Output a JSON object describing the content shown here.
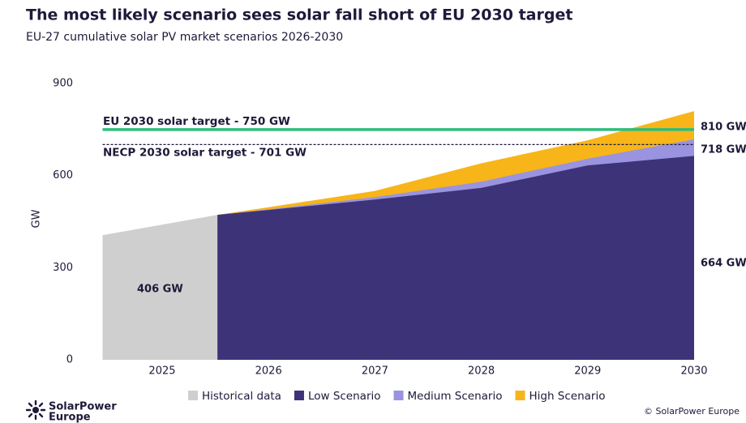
{
  "chart_data": {
    "type": "area",
    "title": "The most likely scenario sees solar fall short of EU 2030 target",
    "subtitle": "EU-27 cumulative solar PV market scenarios 2026-2030",
    "y_label": "GW",
    "xlim": [
      2024.44,
      2030
    ],
    "xticks": [
      2025,
      2026,
      2027,
      2028,
      2029,
      2030
    ],
    "ylim": [
      0,
      900
    ],
    "yticks": [
      0,
      300,
      600,
      900
    ],
    "grid": false,
    "series": [
      {
        "name": "Historical data",
        "color": "#cfcfcf",
        "x": [
          2024.44,
          2025.52
        ],
        "values": [
          406,
          472
        ],
        "value_labels": [
          "406 GW",
          null
        ]
      },
      {
        "name": "Low Scenario",
        "color": "#3d3378",
        "x": [
          2025.52,
          2026,
          2027,
          2028,
          2029,
          2030
        ],
        "values": [
          472,
          488,
          522,
          560,
          633,
          664
        ],
        "value_labels": [
          null,
          null,
          null,
          null,
          null,
          "664 GW"
        ]
      },
      {
        "name": "Medium Scenario",
        "color": "#9a93e0",
        "x": [
          2025.52,
          2026,
          2027,
          2028,
          2029,
          2030
        ],
        "values": [
          472,
          490,
          530,
          580,
          655,
          718
        ],
        "value_labels": [
          null,
          null,
          null,
          null,
          null,
          "718 GW"
        ]
      },
      {
        "name": "High Scenario",
        "color": "#f7b519",
        "x": [
          2025.52,
          2026,
          2027,
          2028,
          2029,
          2030
        ],
        "values": [
          472,
          497,
          550,
          640,
          715,
          810
        ],
        "value_labels": [
          null,
          null,
          null,
          null,
          null,
          "810 GW"
        ]
      }
    ],
    "annotations": [
      {
        "label": "EU 2030 solar target - 750 GW",
        "value": 750,
        "color": "#2ebd7a",
        "style": "solid"
      },
      {
        "label": "NECP 2030 solar target - 701 GW",
        "value": 701,
        "color": "#1d1a3a",
        "style": "dashed"
      }
    ],
    "logo": [
      "SolarPower",
      "Europe"
    ],
    "credit": "© SolarPower Europe"
  }
}
